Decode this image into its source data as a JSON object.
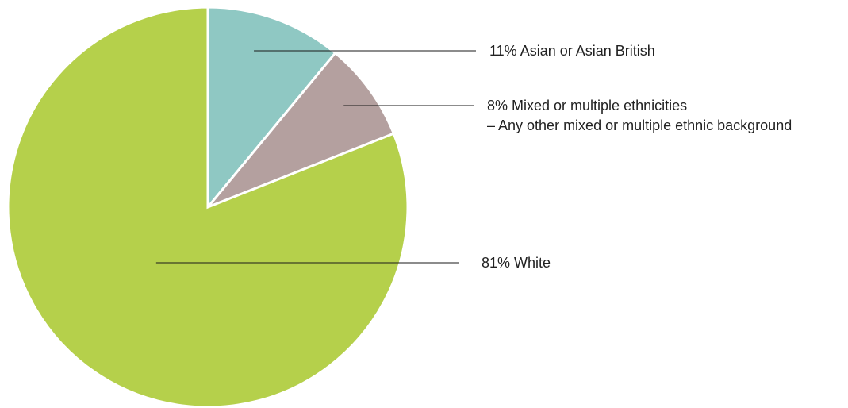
{
  "chart_data": {
    "type": "pie",
    "slices": [
      {
        "label_lines": [
          "11% Asian or Asian British"
        ],
        "value": 11,
        "color": "#8fc8c3"
      },
      {
        "label_lines": [
          "8% Mixed or multiple ethnicities",
          "– Any other mixed or multiple ethnic background"
        ],
        "value": 8,
        "color": "#b4a09f"
      },
      {
        "label_lines": [
          "81% White"
        ],
        "value": 81,
        "color": "#b5d04b"
      }
    ],
    "start": "top",
    "direction": "clockwise",
    "legend": "leader-line labels to the right"
  }
}
